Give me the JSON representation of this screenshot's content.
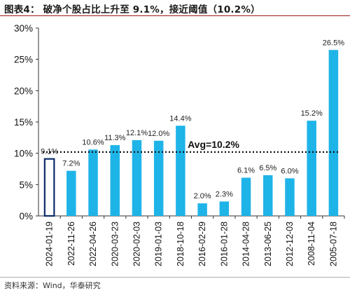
{
  "header": {
    "title": "图表4：  破净个股占比上升至 9.1%，接近阈值（10.2%）"
  },
  "footer": {
    "source": "资料来源：Wind，华泰研究"
  },
  "chart_data": {
    "type": "bar",
    "categories": [
      "2024-01-19",
      "2022-11-26",
      "2022-04-26",
      "2020-03-23",
      "2020-02-03",
      "2019-01-03",
      "2018-10-18",
      "2016-02-29",
      "2016-01-28",
      "2014-04-28",
      "2013-06-25",
      "2012-12-03",
      "2008-11-04",
      "2005-07-18"
    ],
    "values": [
      9.1,
      7.2,
      10.6,
      11.3,
      12.1,
      12.0,
      14.4,
      2.0,
      2.3,
      6.1,
      6.5,
      6.0,
      15.2,
      26.5
    ],
    "data_labels": [
      "9.1%",
      "7.2%",
      "10.6%",
      "11.3%",
      "12.1%",
      "12.0%",
      "14.4%",
      "2.0%",
      "2.3%",
      "6.1%",
      "6.5%",
      "6.0%",
      "15.2%",
      "26.5%"
    ],
    "highlight_index": 0,
    "bar_color": "#1fb4e8",
    "highlight_color": "#0c2c6b",
    "ylim": [
      0,
      30
    ],
    "yticks": [
      0,
      5,
      10,
      15,
      20,
      25,
      30
    ],
    "ytick_labels": [
      "0%",
      "5%",
      "10%",
      "15%",
      "20%",
      "25%",
      "30%"
    ],
    "reference_line": {
      "value": 10.2,
      "label": "Avg=10.2%"
    },
    "xlabel": "",
    "ylabel": "",
    "grid": false,
    "legend": false
  }
}
